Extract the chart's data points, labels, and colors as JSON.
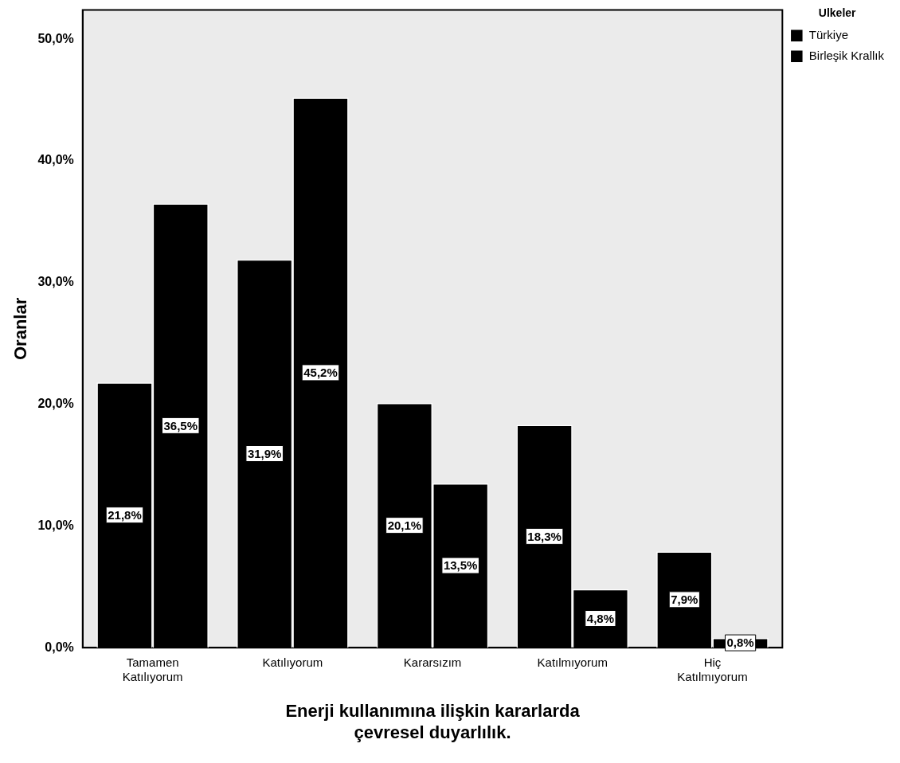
{
  "chart_data": {
    "type": "bar",
    "xlabel": "Enerji kullanımına ilişkin kararlarda\nçevresel duyarlılık.",
    "ylabel": "Oranlar",
    "legend_title": "Ülkeler",
    "legend": "top right",
    "categories": [
      "Tamamen\nKatılıyorum",
      "Katılıyorum",
      "Kararsızım",
      "Katılmıyorum",
      "Hiç\nKatılmıyorum"
    ],
    "series": [
      {
        "name": "Türkiye",
        "color": "#000000",
        "values": [
          21.8,
          31.9,
          20.1,
          18.3,
          7.9
        ],
        "value_labels": [
          "21,8%",
          "31,9%",
          "20,1%",
          "18,3%",
          "7,9%"
        ]
      },
      {
        "name": "Birleşik Krallık",
        "color": "#000000",
        "values": [
          36.5,
          45.2,
          13.5,
          4.8,
          0.8
        ],
        "value_labels": [
          "36,5%",
          "45,2%",
          "13,5%",
          "4,8%",
          "0,8%"
        ]
      }
    ],
    "ylim": [
      0,
      52.4
    ],
    "yticks": [
      {
        "value": 0,
        "label": "0,0%"
      },
      {
        "value": 10,
        "label": "10,0%"
      },
      {
        "value": 20,
        "label": "20,0%"
      },
      {
        "value": 30,
        "label": "30,0%"
      },
      {
        "value": 40,
        "label": "40,0%"
      },
      {
        "value": 50,
        "label": "50,0%"
      }
    ],
    "grid": false
  }
}
